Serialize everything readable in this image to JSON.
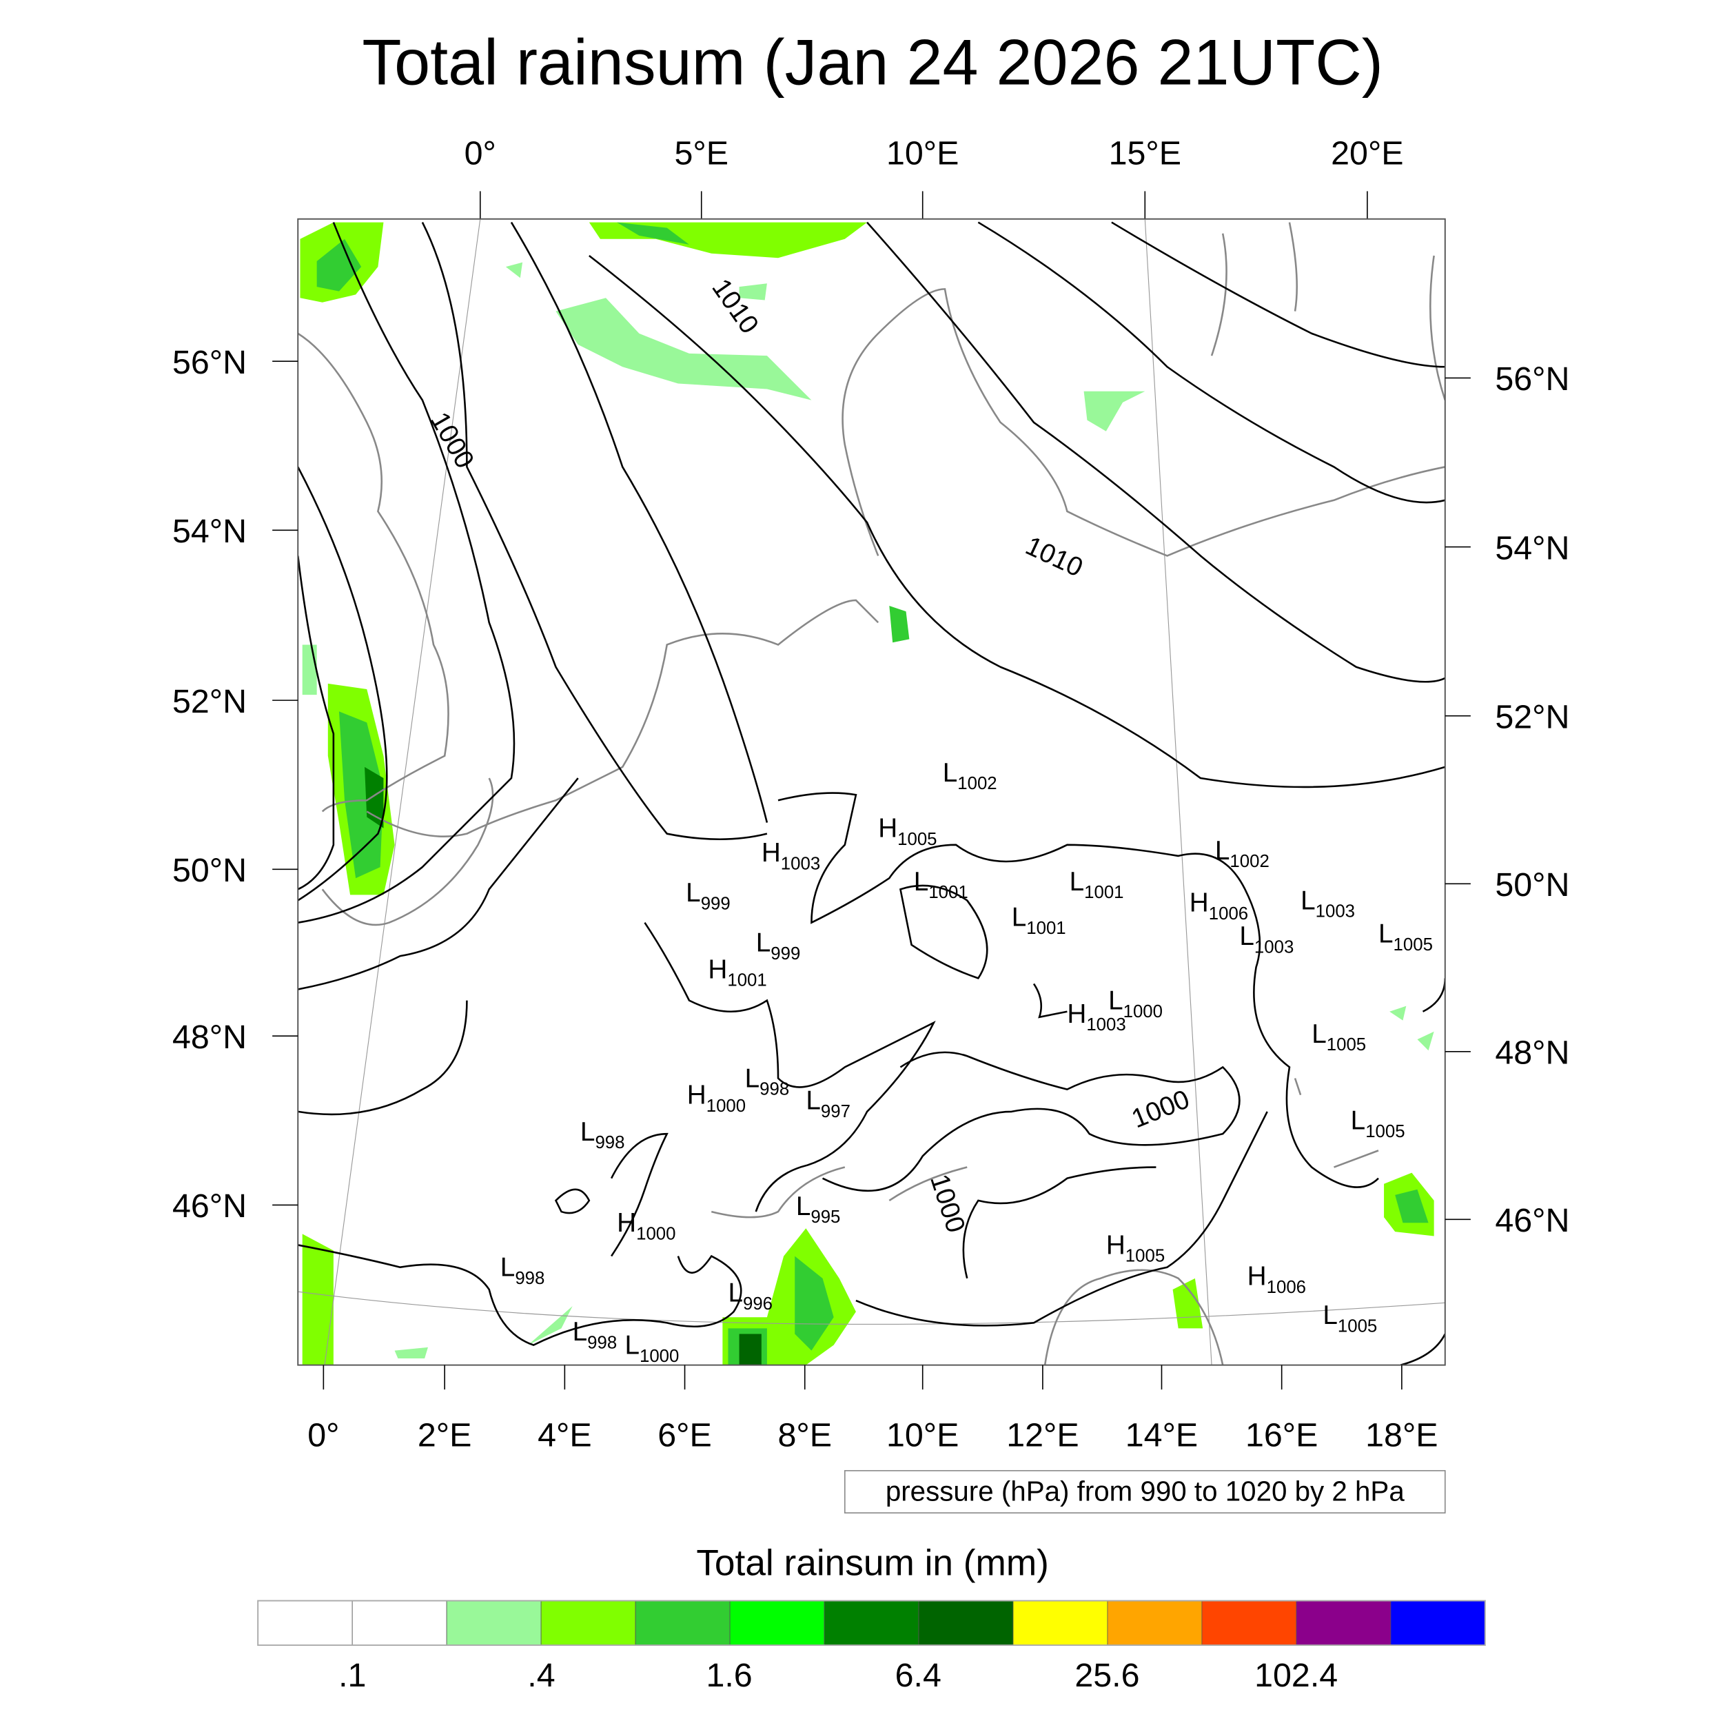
{
  "title": "Total rainsum (Jan 24 2026 21UTC)",
  "top_lon_labels": [
    "0°",
    "5°E",
    "10°E",
    "15°E",
    "20°E"
  ],
  "bottom_lon_labels": [
    "0°",
    "2°E",
    "4°E",
    "6°E",
    "8°E",
    "10°E",
    "12°E",
    "14°E",
    "16°E",
    "18°E"
  ],
  "left_lat_labels": [
    "56°N",
    "54°N",
    "52°N",
    "50°N",
    "48°N",
    "46°N"
  ],
  "right_lat_labels": [
    "56°N",
    "54°N",
    "52°N",
    "50°N",
    "48°N",
    "46°N"
  ],
  "contour_info": "pressure (hPa) from 990 to 1020 by 2 hPa",
  "contour_labels": [
    "1010",
    "1000",
    "1010",
    "1000",
    "1000"
  ],
  "pressure_systems": [
    {
      "type": "L",
      "value": "1002"
    },
    {
      "type": "H",
      "value": "1005"
    },
    {
      "type": "H",
      "value": "1003"
    },
    {
      "type": "L",
      "value": "1002"
    },
    {
      "type": "L",
      "value": "999"
    },
    {
      "type": "L",
      "value": "1001"
    },
    {
      "type": "L",
      "value": "1001"
    },
    {
      "type": "H",
      "value": "1006"
    },
    {
      "type": "L",
      "value": "1003"
    },
    {
      "type": "L",
      "value": "1001"
    },
    {
      "type": "L",
      "value": "999"
    },
    {
      "type": "L",
      "value": "1003"
    },
    {
      "type": "L",
      "value": "1005"
    },
    {
      "type": "H",
      "value": "1001"
    },
    {
      "type": "L",
      "value": "1000"
    },
    {
      "type": "H",
      "value": "1003"
    },
    {
      "type": "L",
      "value": "1005"
    },
    {
      "type": "H",
      "value": "1000"
    },
    {
      "type": "L",
      "value": "998"
    },
    {
      "type": "L",
      "value": "997"
    },
    {
      "type": "L",
      "value": "998"
    },
    {
      "type": "L",
      "value": "1005"
    },
    {
      "type": "L",
      "value": "995"
    },
    {
      "type": "H",
      "value": "1000"
    },
    {
      "type": "L",
      "value": "998"
    },
    {
      "type": "H",
      "value": "1005"
    },
    {
      "type": "H",
      "value": "1006"
    },
    {
      "type": "L",
      "value": "996"
    },
    {
      "type": "L",
      "value": "1005"
    },
    {
      "type": "L",
      "value": "998"
    },
    {
      "type": "L",
      "value": "1000"
    }
  ],
  "colorbar": {
    "title": "Total rainsum in (mm)",
    "colors": [
      "#ffffff",
      "#ffffff",
      "#99f899",
      "#80ff00",
      "#32cd32",
      "#00ff00",
      "#008000",
      "#006400",
      "#ffff00",
      "#ffa500",
      "#ff4500",
      "#8b008b",
      "#0000ff"
    ],
    "labels": [
      ".1",
      ".4",
      "1.6",
      "6.4",
      "25.6",
      "102.4"
    ]
  }
}
